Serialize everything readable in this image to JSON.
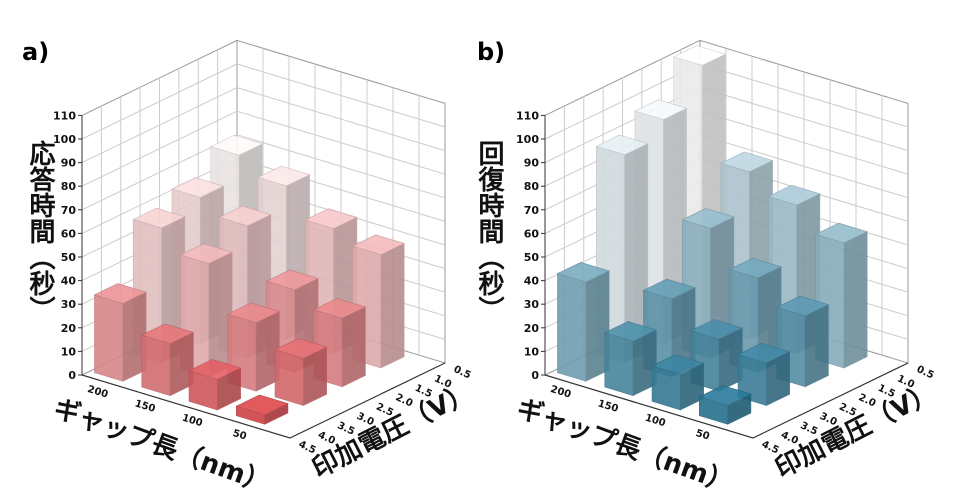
{
  "chart_data": [
    {
      "type": "bar3d",
      "panel_label": "a)",
      "zlabel": "応答時間（秒）",
      "xlabel": "ギャップ長（nm）",
      "ylabel": "印加電圧（V）",
      "zlim": [
        0,
        110
      ],
      "z_ticks": [
        "0",
        "10",
        "20",
        "30",
        "40",
        "50",
        "60",
        "70",
        "80",
        "90",
        "100",
        "110"
      ],
      "x_ticks": [
        "200",
        "150",
        "100",
        "50"
      ],
      "y_ticks": [
        "0.5",
        "1.0",
        "1.5",
        "2.0",
        "2.5",
        "3.0",
        "3.5",
        "4.0",
        "4.5"
      ],
      "gap_nm": [
        200,
        150,
        100,
        50
      ],
      "voltage_V": [
        1.0,
        2.0,
        3.0,
        4.0
      ],
      "values": [
        [
          72,
          62,
          57,
          33
        ],
        [
          65,
          56,
          48,
          22
        ],
        [
          53,
          35,
          29,
          13
        ],
        [
          48,
          29,
          20,
          4
        ]
      ],
      "color_low": "#cf3a3f",
      "color_high": "#f1f1f1"
    },
    {
      "type": "bar3d",
      "panel_label": "b)",
      "zlabel": "回復時間（秒）",
      "xlabel": "ギャップ長（nm）",
      "ylabel": "印加電圧（V）",
      "zlim": [
        0,
        110
      ],
      "z_ticks": [
        "0",
        "10",
        "20",
        "30",
        "40",
        "50",
        "60",
        "70",
        "80",
        "90",
        "100",
        "110"
      ],
      "x_ticks": [
        "200",
        "150",
        "100",
        "50"
      ],
      "y_ticks": [
        "0.5",
        "1.0",
        "1.5",
        "2.0",
        "2.5",
        "3.0",
        "3.5",
        "4.0",
        "4.5"
      ],
      "gap_nm": [
        200,
        150,
        100,
        50
      ],
      "voltage_V": [
        1.0,
        2.0,
        3.0,
        4.0
      ],
      "values": [
        [
          110,
          95,
          88,
          42
        ],
        [
          71,
          55,
          33,
          23
        ],
        [
          63,
          40,
          22,
          15
        ],
        [
          53,
          30,
          18,
          8
        ]
      ],
      "color_low": "#176889",
      "color_high": "#f1f1f1"
    }
  ]
}
